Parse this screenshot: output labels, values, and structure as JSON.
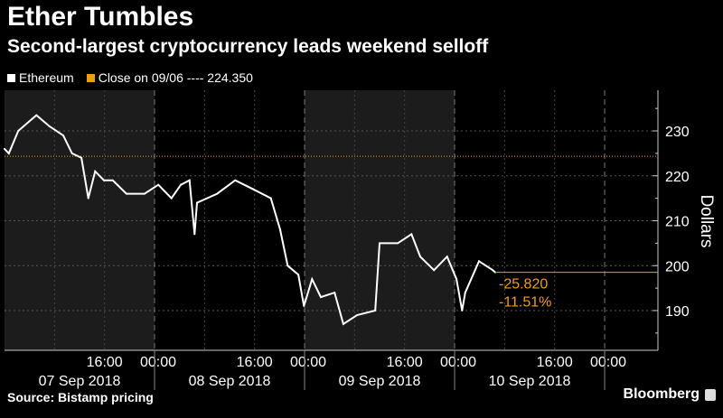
{
  "title": "Ether Tumbles",
  "subtitle": "Second-largest cryptocurrency leads weekend selloff",
  "legend": {
    "series_label": "Ethereum",
    "close_label": "Close on 09/06 ---- 224.350"
  },
  "source": "Source: Bistamp pricing",
  "brand": "Bloomberg",
  "colors": {
    "series": "#ffffff",
    "close": "#f39c12",
    "shade": "#1c1c1c"
  },
  "chart_data": {
    "type": "line",
    "title": "Ether Tumbles",
    "ylabel": "Dollars",
    "ylim": [
      183,
      239
    ],
    "xlim_hours": [
      0,
      104.5
    ],
    "yticks": [
      190,
      200,
      210,
      220,
      230
    ],
    "ytick_labels": [
      "190",
      "200",
      "210",
      "220",
      "230"
    ],
    "day_labels": [
      "07 Sep 2018",
      "08 Sep 2018",
      "09 Sep 2018",
      "10 Sep 2018"
    ],
    "time_labels": [
      "16:00",
      "00:00"
    ],
    "reference": {
      "label": "Close on 09/06",
      "value": 224.35
    },
    "change": {
      "abs": "-25.820",
      "pct": "-11.51%"
    },
    "x_hours": [
      0,
      0.7,
      2.2,
      5.1,
      7.2,
      9.4,
      10.8,
      12.3,
      13.4,
      14.5,
      15.9,
      17.3,
      19.5,
      22.4,
      24.6,
      26.7,
      28.2,
      29.6,
      30.4,
      30.8,
      34.0,
      36.9,
      39.8,
      42.6,
      44.1,
      45.3,
      47.0,
      47.9,
      49.2,
      50.6,
      52.8,
      54.2,
      56.4,
      59.3,
      60.0,
      62.9,
      65.1,
      66.5,
      68.7,
      70.8,
      72.3,
      73.2,
      73.7,
      75.9,
      78.1,
      78.5
    ],
    "values": [
      226,
      225,
      230,
      233.5,
      231,
      229,
      225,
      224,
      215,
      221,
      219,
      219,
      216,
      216,
      218,
      215,
      218,
      219,
      207,
      214,
      216,
      219,
      217,
      215,
      208,
      200,
      198,
      191,
      197,
      193,
      194,
      187,
      189,
      190,
      205,
      205,
      207,
      202,
      199,
      202,
      197,
      190,
      194,
      201,
      199,
      198.53
    ]
  }
}
